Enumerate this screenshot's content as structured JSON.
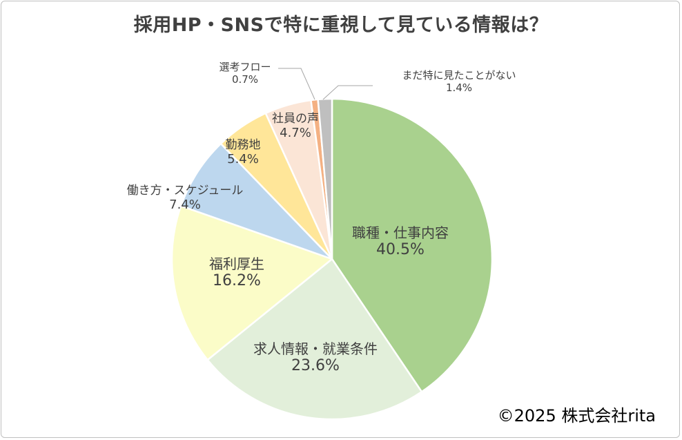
{
  "chart_data": {
    "type": "pie",
    "title": "採用HP・SNSで特に重視して見ている情報は？",
    "slices": [
      {
        "label": "職種・仕事内容",
        "value": 40.5,
        "display": "40.5%",
        "color": "#a9d18e"
      },
      {
        "label": "求人情報・就業条件",
        "value": 23.6,
        "display": "23.6%",
        "color": "#e2efda"
      },
      {
        "label": "福利厚生",
        "value": 16.2,
        "display": "16.2%",
        "color": "#fbfcc8"
      },
      {
        "label": "働き方・スケジュール",
        "value": 7.4,
        "display": "7.4%",
        "color": "#bdd7ee"
      },
      {
        "label": "勤務地",
        "value": 5.4,
        "display": "5.4%",
        "color": "#ffe699"
      },
      {
        "label": "社員の声",
        "value": 4.7,
        "display": "4.7%",
        "color": "#fbe5d6"
      },
      {
        "label": "選考フロー",
        "value": 0.7,
        "display": "0.7%",
        "color": "#f4b183"
      },
      {
        "label": "まだ特に見たことがない",
        "value": 1.4,
        "display": "1.4%",
        "color": "#bfbfbf"
      }
    ]
  },
  "copyright": "©2025 株式会社rita"
}
